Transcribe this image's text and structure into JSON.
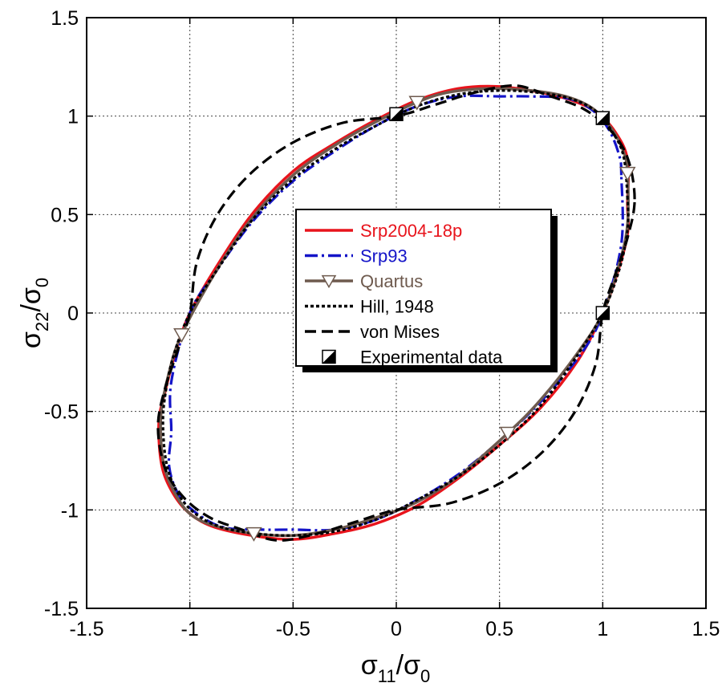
{
  "chart_data": {
    "type": "line",
    "xlabel": {
      "main": "σ",
      "sub1": "11",
      "sep": "/σ",
      "sub2": "0"
    },
    "ylabel": {
      "main": "σ",
      "sub1": "22",
      "sep": "/σ",
      "sub2": "0"
    },
    "xlim": [
      -1.5,
      1.5
    ],
    "ylim": [
      -1.5,
      1.5
    ],
    "x_ticks": [
      -1.5,
      -1,
      -0.5,
      0,
      0.5,
      1,
      1.5
    ],
    "y_ticks": [
      -1.5,
      -1,
      -0.5,
      0,
      0.5,
      1,
      1.5
    ],
    "x_tick_labels": [
      "-1.5",
      "-1",
      "-0.5",
      "0",
      "0.5",
      "1",
      "1.5"
    ],
    "y_tick_labels": [
      "-1.5",
      "-1",
      "-0.5",
      "0",
      "0.5",
      "1",
      "1.5"
    ],
    "grid": true,
    "legend_position": "center",
    "series": [
      {
        "name": "Srp2004-18p",
        "color": "#e8141c",
        "style": "solid",
        "points": [
          [
            1.12,
            0.55
          ],
          [
            1.12,
            0.78
          ],
          [
            1.06,
            0.92
          ],
          [
            0.97,
            1.02
          ],
          [
            0.85,
            1.08
          ],
          [
            0.7,
            1.12
          ],
          [
            0.5,
            1.15
          ],
          [
            0.3,
            1.14
          ],
          [
            0.1,
            1.08
          ],
          [
            -0.1,
            0.98
          ],
          [
            -0.3,
            0.86
          ],
          [
            -0.5,
            0.72
          ],
          [
            -0.7,
            0.5
          ],
          [
            -0.88,
            0.22
          ],
          [
            -1.0,
            0.0
          ],
          [
            -1.07,
            -0.2
          ],
          [
            -1.12,
            -0.4
          ],
          [
            -1.15,
            -0.55
          ],
          [
            -1.14,
            -0.75
          ],
          [
            -1.1,
            -0.88
          ],
          [
            -1.02,
            -1.0
          ],
          [
            -0.9,
            -1.08
          ],
          [
            -0.7,
            -1.13
          ],
          [
            -0.5,
            -1.15
          ],
          [
            -0.3,
            -1.12
          ],
          [
            -0.1,
            -1.07
          ],
          [
            0.1,
            -0.98
          ],
          [
            0.3,
            -0.84
          ],
          [
            0.5,
            -0.67
          ],
          [
            0.7,
            -0.48
          ],
          [
            0.88,
            -0.24
          ],
          [
            1.0,
            0.0
          ],
          [
            1.07,
            0.2
          ],
          [
            1.12,
            0.4
          ],
          [
            1.12,
            0.55
          ]
        ]
      },
      {
        "name": "Srp93",
        "color": "#1414c8",
        "style": "dashdot",
        "points": [
          [
            1.09,
            0.7
          ],
          [
            1.08,
            0.8
          ],
          [
            1.03,
            0.93
          ],
          [
            0.95,
            1.03
          ],
          [
            0.83,
            1.09
          ],
          [
            0.65,
            1.1
          ],
          [
            0.5,
            1.1
          ],
          [
            0.3,
            1.1
          ],
          [
            0.1,
            1.05
          ],
          [
            -0.1,
            0.95
          ],
          [
            -0.3,
            0.82
          ],
          [
            -0.5,
            0.67
          ],
          [
            -0.7,
            0.46
          ],
          [
            -0.88,
            0.2
          ],
          [
            -1.0,
            0.0
          ],
          [
            -1.09,
            -0.35
          ],
          [
            -1.09,
            -0.6
          ],
          [
            -1.1,
            -0.78
          ],
          [
            -1.05,
            -0.93
          ],
          [
            -0.95,
            -1.03
          ],
          [
            -0.83,
            -1.09
          ],
          [
            -0.65,
            -1.1
          ],
          [
            -0.5,
            -1.1
          ],
          [
            -0.3,
            -1.1
          ],
          [
            -0.1,
            -1.05
          ],
          [
            0.1,
            -0.95
          ],
          [
            0.3,
            -0.82
          ],
          [
            0.5,
            -0.65
          ],
          [
            0.7,
            -0.45
          ],
          [
            0.9,
            -0.2
          ],
          [
            1.0,
            0.0
          ],
          [
            1.09,
            0.35
          ],
          [
            1.09,
            0.7
          ]
        ]
      },
      {
        "name": "Quartus",
        "color": "#6e5a4e",
        "style": "solid",
        "marker": "triangle-down",
        "markers": [
          [
            0.1,
            1.07
          ],
          [
            1.12,
            0.71
          ],
          [
            -1.04,
            -0.11
          ],
          [
            -0.69,
            -1.12
          ],
          [
            0.54,
            -0.61
          ]
        ],
        "points": [
          [
            1.12,
            0.71
          ],
          [
            1.1,
            0.82
          ],
          [
            1.04,
            0.94
          ],
          [
            0.95,
            1.04
          ],
          [
            0.82,
            1.1
          ],
          [
            0.65,
            1.13
          ],
          [
            0.45,
            1.14
          ],
          [
            0.25,
            1.12
          ],
          [
            0.1,
            1.07
          ],
          [
            -0.1,
            0.97
          ],
          [
            -0.3,
            0.85
          ],
          [
            -0.5,
            0.7
          ],
          [
            -0.7,
            0.48
          ],
          [
            -0.88,
            0.2
          ],
          [
            -1.04,
            -0.11
          ],
          [
            -1.1,
            -0.3
          ],
          [
            -1.14,
            -0.52
          ],
          [
            -1.13,
            -0.75
          ],
          [
            -1.08,
            -0.9
          ],
          [
            -1.0,
            -1.02
          ],
          [
            -0.88,
            -1.08
          ],
          [
            -0.69,
            -1.12
          ],
          [
            -0.5,
            -1.13
          ],
          [
            -0.3,
            -1.1
          ],
          [
            -0.1,
            -1.04
          ],
          [
            0.1,
            -0.96
          ],
          [
            0.3,
            -0.83
          ],
          [
            0.54,
            -0.61
          ],
          [
            0.7,
            -0.44
          ],
          [
            0.88,
            -0.2
          ],
          [
            1.0,
            0.0
          ],
          [
            1.08,
            0.25
          ],
          [
            1.12,
            0.45
          ],
          [
            1.12,
            0.71
          ]
        ]
      },
      {
        "name": "Hill, 1948",
        "color": "#000000",
        "style": "dotted",
        "points": [
          [
            1.12,
            0.58
          ],
          [
            1.1,
            0.8
          ],
          [
            1.04,
            0.93
          ],
          [
            0.96,
            1.03
          ],
          [
            0.84,
            1.09
          ],
          [
            0.68,
            1.12
          ],
          [
            0.5,
            1.13
          ],
          [
            0.3,
            1.11
          ],
          [
            0.1,
            1.05
          ],
          [
            -0.1,
            0.95
          ],
          [
            -0.3,
            0.83
          ],
          [
            -0.5,
            0.68
          ],
          [
            -0.7,
            0.47
          ],
          [
            -0.88,
            0.2
          ],
          [
            -1.0,
            0.0
          ],
          [
            -1.08,
            -0.22
          ],
          [
            -1.12,
            -0.42
          ],
          [
            -1.13,
            -0.58
          ],
          [
            -1.11,
            -0.78
          ],
          [
            -1.05,
            -0.93
          ],
          [
            -0.96,
            -1.03
          ],
          [
            -0.84,
            -1.09
          ],
          [
            -0.68,
            -1.12
          ],
          [
            -0.5,
            -1.13
          ],
          [
            -0.3,
            -1.11
          ],
          [
            -0.1,
            -1.05
          ],
          [
            0.1,
            -0.95
          ],
          [
            0.3,
            -0.83
          ],
          [
            0.5,
            -0.67
          ],
          [
            0.7,
            -0.47
          ],
          [
            0.88,
            -0.21
          ],
          [
            1.0,
            0.0
          ],
          [
            1.08,
            0.22
          ],
          [
            1.12,
            0.42
          ],
          [
            1.12,
            0.58
          ]
        ]
      },
      {
        "name": "von Mises",
        "color": "#000000",
        "style": "dashed",
        "points": [
          [
            1.1547,
            0.5774
          ],
          [
            1.1213,
            0.7854
          ],
          [
            1.0345,
            0.9313
          ],
          [
            0.9069,
            1.0366
          ],
          [
            0.7459,
            1.1008
          ],
          [
            0.5774,
            1.1547
          ],
          [
            0.3864,
            1.1213
          ],
          [
            0.1962,
            1.0606
          ],
          [
            0.0,
            1.0
          ],
          [
            -0.2588,
            0.9659
          ],
          [
            -0.5,
            0.866
          ],
          [
            -0.7071,
            0.7071
          ],
          [
            -0.866,
            0.5
          ],
          [
            -0.9659,
            0.2588
          ],
          [
            -1.0,
            0.0
          ],
          [
            -1.0606,
            -0.1962
          ],
          [
            -1.1213,
            -0.3864
          ],
          [
            -1.1547,
            -0.5774
          ],
          [
            -1.1213,
            -0.7854
          ],
          [
            -1.0345,
            -0.9313
          ],
          [
            -0.9069,
            -1.0366
          ],
          [
            -0.7459,
            -1.1008
          ],
          [
            -0.5774,
            -1.1547
          ],
          [
            -0.3864,
            -1.1213
          ],
          [
            -0.1962,
            -1.0606
          ],
          [
            0.0,
            -1.0
          ],
          [
            0.2588,
            -0.9659
          ],
          [
            0.5,
            -0.866
          ],
          [
            0.7071,
            -0.7071
          ],
          [
            0.866,
            -0.5
          ],
          [
            0.9659,
            -0.2588
          ],
          [
            1.0,
            0.0
          ],
          [
            1.0606,
            0.1962
          ],
          [
            1.1213,
            0.3864
          ],
          [
            1.1547,
            0.5774
          ]
        ]
      },
      {
        "name": "Experimental data",
        "color": "#000000",
        "style": "none",
        "marker": "half-filled-square",
        "markers": [
          [
            0.0,
            1.01
          ],
          [
            1.0,
            0.99
          ],
          [
            1.0,
            0.0
          ]
        ]
      }
    ]
  }
}
